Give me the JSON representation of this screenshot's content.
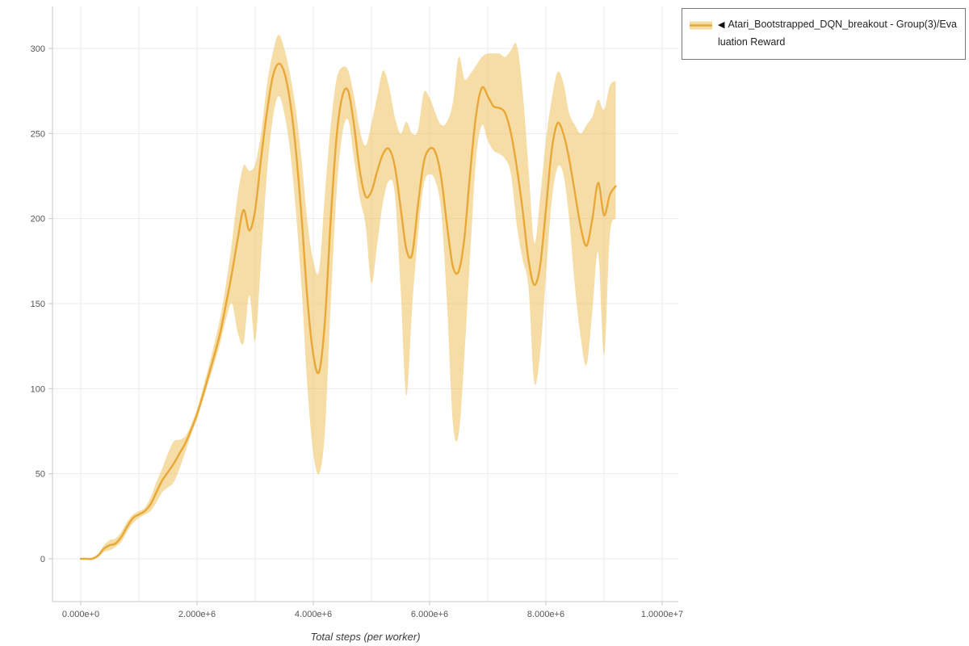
{
  "legend": {
    "collapse_glyph": "◀",
    "label": "Atari_Bootstrapped_DQN_breakout - Group(3)/Evaluation Reward",
    "position": "top-right"
  },
  "chart_data": {
    "type": "line",
    "title": "",
    "xlabel": "Total steps (per worker)",
    "ylabel": "",
    "x_units": "millions of steps (x values are in 1e6 steps)",
    "xlim": [
      -0.5,
      10.3
    ],
    "ylim": [
      -25,
      325
    ],
    "grid": true,
    "legend_entries": [
      "Atari_Bootstrapped_DQN_breakout - Group(3)/Evaluation Reward"
    ],
    "x_ticks": [
      {
        "value": 0,
        "label": "0.000e+0"
      },
      {
        "value": 2,
        "label": "2.000e+6"
      },
      {
        "value": 4,
        "label": "4.000e+6"
      },
      {
        "value": 6,
        "label": "6.000e+6"
      },
      {
        "value": 8,
        "label": "8.000e+6"
      },
      {
        "value": 10,
        "label": "1.0000e+7"
      }
    ],
    "y_ticks": [
      0,
      50,
      100,
      150,
      200,
      250,
      300
    ],
    "x": [
      0,
      0.1,
      0.2,
      0.3,
      0.4,
      0.5,
      0.6,
      0.7,
      0.8,
      0.9,
      1,
      1.1,
      1.2,
      1.3,
      1.4,
      1.5,
      1.6,
      1.7,
      1.8,
      1.9,
      2,
      2.1,
      2.2,
      2.3,
      2.4,
      2.5,
      2.6,
      2.7,
      2.8,
      2.9,
      3,
      3.1,
      3.2,
      3.3,
      3.4,
      3.5,
      3.6,
      3.7,
      3.8,
      3.9,
      4,
      4.1,
      4.2,
      4.3,
      4.4,
      4.5,
      4.6,
      4.7,
      4.8,
      4.9,
      5,
      5.1,
      5.2,
      5.3,
      5.4,
      5.5,
      5.6,
      5.7,
      5.8,
      5.9,
      6,
      6.1,
      6.2,
      6.3,
      6.4,
      6.5,
      6.6,
      6.7,
      6.8,
      6.9,
      7,
      7.1,
      7.2,
      7.3,
      7.4,
      7.5,
      7.6,
      7.7,
      7.8,
      7.9,
      8,
      8.1,
      8.2,
      8.3,
      8.4,
      8.5,
      8.6,
      8.7,
      8.8,
      8.9,
      9,
      9.1,
      9.2
    ],
    "series": [
      {
        "name": "mean",
        "values": [
          0,
          0,
          0,
          2,
          6,
          8,
          9,
          13,
          19,
          24,
          26,
          28,
          32,
          39,
          46,
          51,
          56,
          62,
          68,
          76,
          85,
          96,
          108,
          120,
          133,
          150,
          168,
          188,
          205,
          193,
          205,
          235,
          262,
          283,
          291,
          286,
          269,
          240,
          200,
          152,
          120,
          110,
          140,
          200,
          248,
          272,
          275,
          255,
          228,
          213,
          216,
          228,
          238,
          241,
          231,
          207,
          182,
          179,
          208,
          233,
          241,
          239,
          224,
          196,
          172,
          169,
          189,
          228,
          261,
          277,
          272,
          266,
          265,
          262,
          250,
          230,
          205,
          176,
          161,
          172,
          205,
          240,
          256,
          250,
          235,
          215,
          195,
          184,
          200,
          221,
          202,
          214,
          219
        ]
      },
      {
        "name": "lower",
        "values": [
          0,
          0,
          0,
          1,
          4,
          5,
          7,
          10,
          16,
          21,
          24,
          26,
          28,
          33,
          39,
          42,
          45,
          53,
          63,
          73,
          82,
          93,
          104,
          115,
          127,
          141,
          150,
          133,
          127,
          155,
          128,
          175,
          225,
          258,
          272,
          262,
          240,
          204,
          158,
          100,
          62,
          50,
          75,
          150,
          215,
          250,
          258,
          235,
          212,
          196,
          162,
          185,
          210,
          222,
          215,
          160,
          96,
          148,
          190,
          220,
          226,
          222,
          204,
          150,
          80,
          73,
          120,
          180,
          235,
          255,
          246,
          240,
          238,
          235,
          226,
          196,
          176,
          160,
          104,
          120,
          166,
          210,
          230,
          226,
          200,
          160,
          130,
          114,
          146,
          180,
          120,
          190,
          200
        ]
      },
      {
        "name": "upper",
        "values": [
          0,
          0,
          1,
          3,
          8,
          11,
          12,
          16,
          22,
          26,
          28,
          30,
          36,
          45,
          53,
          62,
          69,
          70,
          72,
          79,
          88,
          100,
          113,
          127,
          142,
          162,
          186,
          214,
          231,
          228,
          232,
          250,
          278,
          297,
          308,
          300,
          285,
          264,
          234,
          198,
          175,
          170,
          215,
          255,
          282,
          289,
          287,
          272,
          252,
          243,
          256,
          272,
          287,
          278,
          260,
          250,
          257,
          250,
          252,
          274,
          271,
          262,
          255,
          257,
          268,
          295,
          282,
          285,
          290,
          295,
          297,
          297,
          297,
          295,
          299,
          302,
          275,
          230,
          186,
          212,
          246,
          270,
          286,
          280,
          262,
          255,
          250,
          255,
          260,
          270,
          264,
          278,
          281
        ]
      }
    ],
    "colors": {
      "line": "#E8A838",
      "band_fill": "#EFC15C",
      "band_opacity": 0.55,
      "grid": "#EBEBEB",
      "axis": "#C9C9C9",
      "tick_text": "#555555",
      "legend_border": "#777777"
    }
  }
}
